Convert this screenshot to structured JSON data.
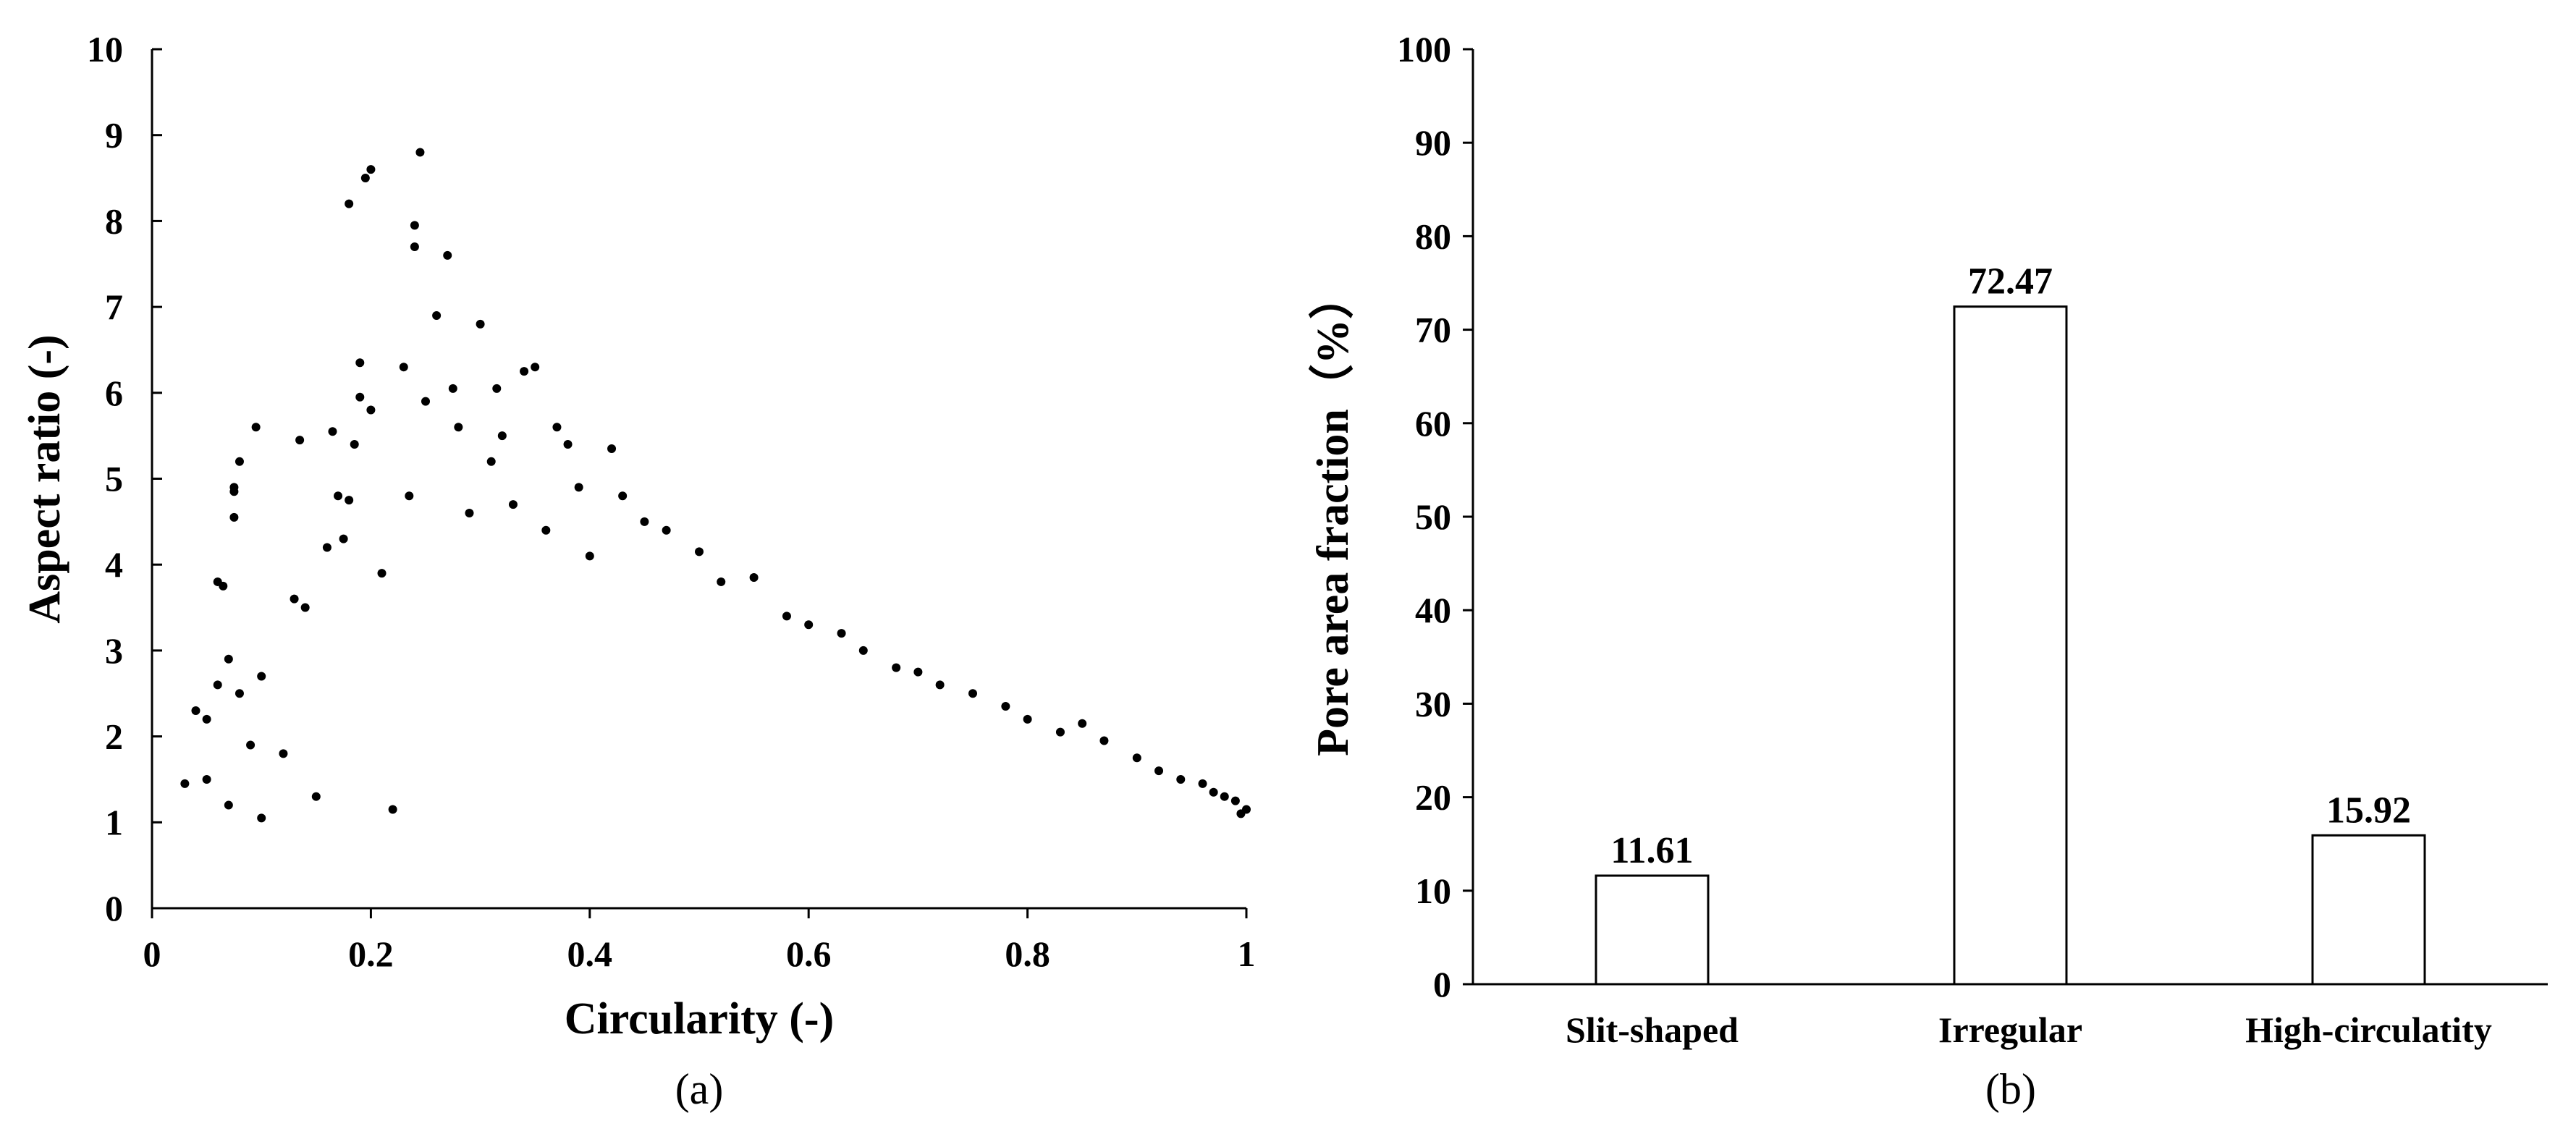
{
  "chart_data": [
    {
      "type": "scatter",
      "panel_label": "(a)",
      "xlabel": "Circularity (-)",
      "ylabel": "Aspect ratio (-)",
      "xlim": [
        0,
        1
      ],
      "ylim": [
        0,
        10
      ],
      "x_ticks": [
        "0",
        "0.2",
        "0.4",
        "0.6",
        "0.8",
        "1"
      ],
      "y_ticks": [
        "0",
        "1",
        "2",
        "3",
        "4",
        "5",
        "6",
        "7",
        "8",
        "9",
        "10"
      ],
      "marker_color": "#000000",
      "grid": false,
      "points": [
        [
          0.03,
          1.45
        ],
        [
          0.04,
          2.3
        ],
        [
          0.05,
          2.2
        ],
        [
          0.05,
          1.5
        ],
        [
          0.06,
          2.6
        ],
        [
          0.06,
          3.8
        ],
        [
          0.065,
          3.75
        ],
        [
          0.07,
          2.9
        ],
        [
          0.07,
          1.2
        ],
        [
          0.075,
          4.9
        ],
        [
          0.075,
          4.85
        ],
        [
          0.075,
          4.55
        ],
        [
          0.08,
          5.2
        ],
        [
          0.08,
          2.5
        ],
        [
          0.09,
          1.9
        ],
        [
          0.095,
          5.6
        ],
        [
          0.1,
          1.05
        ],
        [
          0.1,
          2.7
        ],
        [
          0.12,
          1.8
        ],
        [
          0.13,
          3.6
        ],
        [
          0.135,
          5.45
        ],
        [
          0.14,
          3.5
        ],
        [
          0.15,
          1.3
        ],
        [
          0.16,
          4.2
        ],
        [
          0.165,
          5.55
        ],
        [
          0.17,
          4.8
        ],
        [
          0.175,
          4.3
        ],
        [
          0.18,
          8.2
        ],
        [
          0.18,
          4.75
        ],
        [
          0.185,
          5.4
        ],
        [
          0.19,
          6.35
        ],
        [
          0.19,
          5.95
        ],
        [
          0.195,
          8.5
        ],
        [
          0.2,
          8.6
        ],
        [
          0.2,
          5.8
        ],
        [
          0.21,
          3.9
        ],
        [
          0.22,
          1.15
        ],
        [
          0.23,
          6.3
        ],
        [
          0.235,
          4.8
        ],
        [
          0.24,
          7.7
        ],
        [
          0.24,
          7.95
        ],
        [
          0.245,
          8.8
        ],
        [
          0.25,
          5.9
        ],
        [
          0.26,
          6.9
        ],
        [
          0.27,
          7.6
        ],
        [
          0.275,
          6.05
        ],
        [
          0.28,
          5.6
        ],
        [
          0.29,
          4.6
        ],
        [
          0.3,
          6.8
        ],
        [
          0.31,
          5.2
        ],
        [
          0.315,
          6.05
        ],
        [
          0.32,
          5.5
        ],
        [
          0.33,
          4.7
        ],
        [
          0.34,
          6.25
        ],
        [
          0.35,
          6.3
        ],
        [
          0.36,
          4.4
        ],
        [
          0.37,
          5.6
        ],
        [
          0.38,
          5.4
        ],
        [
          0.39,
          4.9
        ],
        [
          0.4,
          4.1
        ],
        [
          0.42,
          5.35
        ],
        [
          0.43,
          4.8
        ],
        [
          0.45,
          4.5
        ],
        [
          0.47,
          4.4
        ],
        [
          0.5,
          4.15
        ],
        [
          0.52,
          3.8
        ],
        [
          0.55,
          3.85
        ],
        [
          0.58,
          3.4
        ],
        [
          0.6,
          3.3
        ],
        [
          0.63,
          3.2
        ],
        [
          0.65,
          3.0
        ],
        [
          0.68,
          2.8
        ],
        [
          0.7,
          2.75
        ],
        [
          0.72,
          2.6
        ],
        [
          0.75,
          2.5
        ],
        [
          0.78,
          2.35
        ],
        [
          0.8,
          2.2
        ],
        [
          0.83,
          2.05
        ],
        [
          0.85,
          2.15
        ],
        [
          0.87,
          1.95
        ],
        [
          0.9,
          1.75
        ],
        [
          0.92,
          1.6
        ],
        [
          0.94,
          1.5
        ],
        [
          0.96,
          1.45
        ],
        [
          0.97,
          1.35
        ],
        [
          0.98,
          1.3
        ],
        [
          0.99,
          1.25
        ],
        [
          1.0,
          1.15
        ],
        [
          0.995,
          1.1
        ]
      ]
    },
    {
      "type": "bar",
      "panel_label": "(b)",
      "ylabel": "Pore area fraction（%）",
      "ylim": [
        0,
        100
      ],
      "y_ticks": [
        "0",
        "10",
        "20",
        "30",
        "40",
        "50",
        "60",
        "70",
        "80",
        "90",
        "100"
      ],
      "categories": [
        "Slit-shaped",
        "Irregular",
        "High-circulatity"
      ],
      "values": [
        11.61,
        72.47,
        15.92
      ],
      "data_labels": [
        "11.61",
        "72.47",
        "15.92"
      ],
      "bar_fill": "#ffffff",
      "bar_stroke": "#000000",
      "grid": false
    }
  ]
}
